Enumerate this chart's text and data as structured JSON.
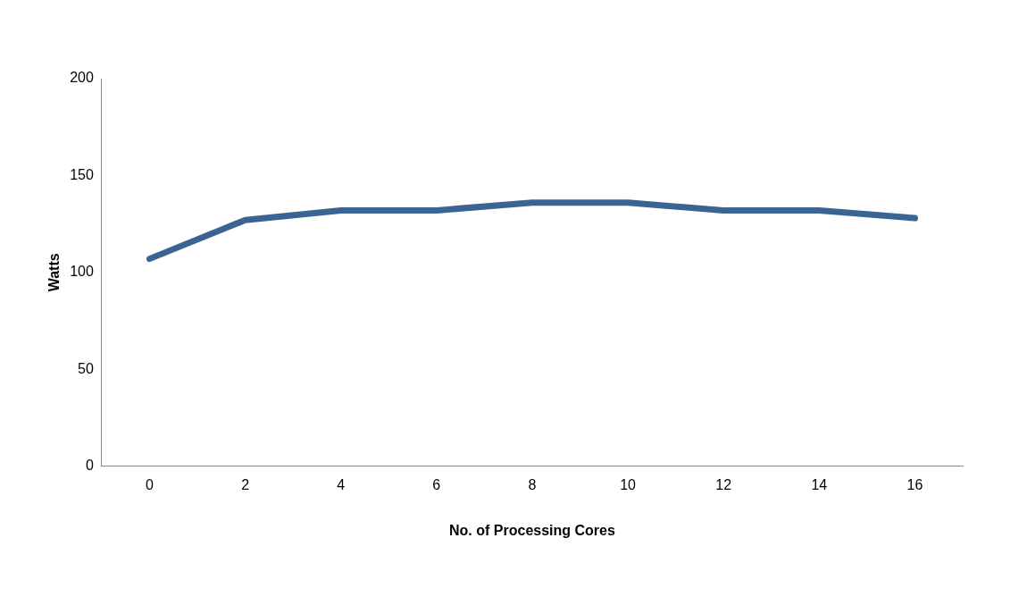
{
  "chart_data": {
    "type": "line",
    "xlabel": "No. of Processing Cores",
    "ylabel": "Watts",
    "categories": [
      "0",
      "2",
      "4",
      "6",
      "8",
      "10",
      "12",
      "14",
      "16"
    ],
    "series": [
      {
        "color": "#3a6491",
        "values": [
          107,
          127,
          132,
          132,
          136,
          136,
          132,
          132,
          128
        ]
      }
    ],
    "ylim": [
      0,
      200
    ],
    "yticks": [
      0,
      50,
      100,
      150,
      200
    ],
    "grid": false,
    "legend": false,
    "marker": "none",
    "line_style": "solid"
  }
}
